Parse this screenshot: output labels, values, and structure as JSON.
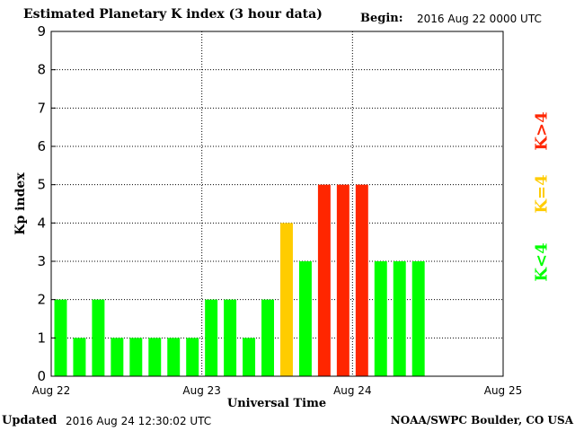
{
  "chart_data": {
    "type": "bar",
    "title": "Estimated Planetary K index (3 hour data)",
    "begin_label": "Begin:",
    "begin_value": "2016 Aug 22 0000 UTC",
    "ylabel": "Kp index",
    "xlabel": "Universal Time",
    "ylim": [
      0,
      9
    ],
    "y_ticks": [
      "0",
      "1",
      "2",
      "3",
      "4",
      "5",
      "6",
      "7",
      "8",
      "9"
    ],
    "x_ticks": [
      "Aug 22",
      "Aug 23",
      "Aug 24",
      "Aug 25"
    ],
    "grid": true,
    "values": [
      2,
      1,
      2,
      1,
      1,
      1,
      1,
      1,
      2,
      2,
      1,
      2,
      4,
      3,
      5,
      5,
      5,
      3,
      3,
      3
    ],
    "colors": {
      "low": "#00ff00",
      "mid": "#ffcc00",
      "high": "#ff2600"
    },
    "legend": [
      {
        "label": "K<4",
        "color": "#00ff00"
      },
      {
        "label": "K=4",
        "color": "#ffcc00"
      },
      {
        "label": "K>4",
        "color": "#ff2600"
      }
    ]
  },
  "footer": {
    "updated_label": "Updated",
    "updated_value": "2016 Aug 24 12:30:02 UTC",
    "credit": "NOAA/SWPC Boulder, CO USA"
  }
}
